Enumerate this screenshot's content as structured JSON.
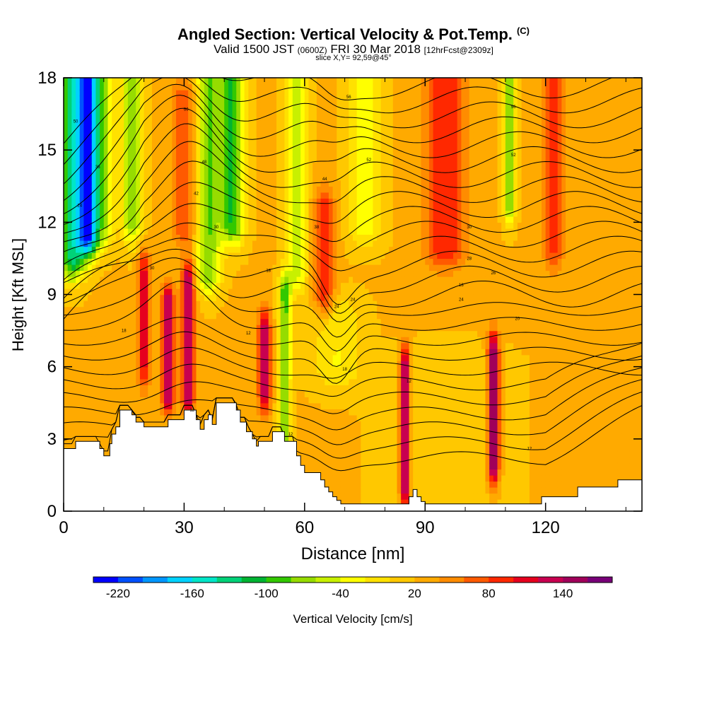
{
  "header": {
    "title_main": "Angled Section: Vertical Velocity & Pot.Temp.",
    "title_unit": "(C)",
    "valid_prefix": "Valid 1500 JST",
    "valid_utc": "(0600Z)",
    "valid_date": "FRI 30 Mar 2018",
    "valid_fcst": "[12hrFcst@2309z]",
    "slice": "slice X,Y= 92,59@45°"
  },
  "chart_data": {
    "type": "heatmap",
    "xlabel": "Distance [nm]",
    "ylabel": "Height [Kft MSL]",
    "xlim": [
      0,
      144
    ],
    "ylim": [
      0,
      18
    ],
    "x_ticks": [
      0,
      30,
      60,
      90,
      120
    ],
    "y_ticks": [
      0,
      3,
      6,
      9,
      12,
      15,
      18
    ],
    "colorbar": {
      "label": "Vertical Velocity [cm/s]",
      "tick_labels": [
        -220,
        -160,
        -100,
        -40,
        20,
        80,
        140
      ],
      "min": -240,
      "max": 180,
      "colors": [
        "#0000ff",
        "#0050ff",
        "#0096ff",
        "#00d2ff",
        "#00e6c8",
        "#00d278",
        "#00b432",
        "#32c800",
        "#96dc00",
        "#c8f000",
        "#ffff00",
        "#ffe100",
        "#ffc800",
        "#ffaa00",
        "#ff8c00",
        "#ff5a00",
        "#ff2800",
        "#e6001e",
        "#c80050",
        "#a0005a",
        "#780078"
      ]
    },
    "w_field": {
      "base": 22,
      "bands": [
        {
          "x": 2,
          "width": 3,
          "w": -120,
          "ymin": 10.5,
          "ymax": 18
        },
        {
          "x": 6,
          "width": 2.5,
          "w": -210,
          "ymin": 11.5,
          "ymax": 18
        },
        {
          "x": 10,
          "width": 2.5,
          "w": -60,
          "ymin": 12,
          "ymax": 18
        },
        {
          "x": 17,
          "width": 2.5,
          "w": -70,
          "ymin": 12,
          "ymax": 18
        },
        {
          "x": 20,
          "width": 1.5,
          "w": 110,
          "ymin": 6,
          "ymax": 10
        },
        {
          "x": 26,
          "width": 1.6,
          "w": 150,
          "ymin": 5,
          "ymax": 8.5
        },
        {
          "x": 31,
          "width": 1.6,
          "w": 150,
          "ymin": 5,
          "ymax": 9.5
        },
        {
          "x": 30,
          "width": 3,
          "w": 80,
          "ymin": 12,
          "ymax": 17
        },
        {
          "x": 36,
          "width": 3,
          "w": -80,
          "ymin": 10,
          "ymax": 18
        },
        {
          "x": 42,
          "width": 3,
          "w": -100,
          "ymin": 12,
          "ymax": 18
        },
        {
          "x": 50,
          "width": 1.5,
          "w": 140,
          "ymin": 5,
          "ymax": 7.5
        },
        {
          "x": 55,
          "width": 1.5,
          "w": -90,
          "ymin": 3,
          "ymax": 9
        },
        {
          "x": 58,
          "width": 2.5,
          "w": -50,
          "ymin": 10,
          "ymax": 18
        },
        {
          "x": 65,
          "width": 2.5,
          "w": 100,
          "ymin": 9,
          "ymax": 12.5
        },
        {
          "x": 75,
          "width": 4,
          "w": -40,
          "ymin": 12,
          "ymax": 18
        },
        {
          "x": 85,
          "width": 1.2,
          "w": 160,
          "ymin": 1,
          "ymax": 6
        },
        {
          "x": 95,
          "width": 5,
          "w": 100,
          "ymin": 11,
          "ymax": 18
        },
        {
          "x": 107,
          "width": 1.4,
          "w": 170,
          "ymin": 2,
          "ymax": 6.5
        },
        {
          "x": 111,
          "width": 1.5,
          "w": -90,
          "ymin": 13,
          "ymax": 18
        },
        {
          "x": 122,
          "width": 2.5,
          "w": 90,
          "ymin": 11,
          "ymax": 18
        },
        {
          "x": 68,
          "width": 6,
          "w": -20,
          "ymin": 6,
          "ymax": 8
        },
        {
          "x": 95,
          "width": 14,
          "w": 2,
          "ymin": 0,
          "ymax": 6
        }
      ]
    },
    "terrain": {
      "x": [
        0,
        2,
        3,
        8,
        9,
        9.5,
        10,
        10.5,
        11.5,
        12,
        13,
        14,
        15,
        17,
        18,
        19,
        20,
        25,
        26,
        30,
        32,
        33,
        34,
        35,
        36,
        37,
        38,
        42,
        43,
        44,
        45,
        45.5,
        46,
        47,
        48,
        48.5,
        51,
        52,
        54,
        55,
        57,
        58,
        59,
        60,
        63,
        64,
        65,
        66,
        67,
        68,
        69,
        70,
        85,
        86,
        87,
        88,
        89,
        90,
        100,
        115,
        119,
        120,
        128,
        129,
        138,
        144
      ],
      "y": [
        2.6,
        2.6,
        2.9,
        2.9,
        2.6,
        2.6,
        2.3,
        2.3,
        2.8,
        3.2,
        3.5,
        4.2,
        4.2,
        4.0,
        3.7,
        3.7,
        3.5,
        3.5,
        3.8,
        4.2,
        4.2,
        3.8,
        3.4,
        3.8,
        4.0,
        3.6,
        4.5,
        4.5,
        4.2,
        3.7,
        3.7,
        3.3,
        3.3,
        3.0,
        2.7,
        2.9,
        2.9,
        3.3,
        3.3,
        2.9,
        2.9,
        2.3,
        1.9,
        1.6,
        1.6,
        1.3,
        1.0,
        0.8,
        0.6,
        0.45,
        0.3,
        0.3,
        0.3,
        0.6,
        0.9,
        0.6,
        0.4,
        0.3,
        0.3,
        0.3,
        0.6,
        0.6,
        1.0,
        1.0,
        1.3,
        1.3
      ]
    },
    "contour_labels": [
      {
        "x": 3,
        "y": 16.2,
        "text": "50"
      },
      {
        "x": 4,
        "y": 12.7,
        "text": "24"
      },
      {
        "x": 8.5,
        "y": 14.3,
        "text": "36"
      },
      {
        "x": 30.5,
        "y": 16.7,
        "text": "66"
      },
      {
        "x": 35,
        "y": 14.5,
        "text": "48"
      },
      {
        "x": 33,
        "y": 13.2,
        "text": "42"
      },
      {
        "x": 38,
        "y": 11.8,
        "text": "30"
      },
      {
        "x": 22,
        "y": 10.1,
        "text": "30"
      },
      {
        "x": 51,
        "y": 10.0,
        "text": "18"
      },
      {
        "x": 15,
        "y": 7.5,
        "text": "18"
      },
      {
        "x": 46,
        "y": 7.4,
        "text": "12"
      },
      {
        "x": 71,
        "y": 17.2,
        "text": "56"
      },
      {
        "x": 76,
        "y": 14.6,
        "text": "52"
      },
      {
        "x": 65,
        "y": 13.8,
        "text": "44"
      },
      {
        "x": 63,
        "y": 11.8,
        "text": "38"
      },
      {
        "x": 68,
        "y": 8.5,
        "text": "24"
      },
      {
        "x": 72,
        "y": 8.8,
        "text": "24"
      },
      {
        "x": 70,
        "y": 5.9,
        "text": "18"
      },
      {
        "x": 56.5,
        "y": 3.2,
        "text": "12"
      },
      {
        "x": 86,
        "y": 5.4,
        "text": "12"
      },
      {
        "x": 112,
        "y": 14.8,
        "text": "52"
      },
      {
        "x": 112,
        "y": 16.8,
        "text": "56"
      },
      {
        "x": 101,
        "y": 11.8,
        "text": "30"
      },
      {
        "x": 101,
        "y": 10.5,
        "text": "28"
      },
      {
        "x": 107,
        "y": 9.9,
        "text": "26"
      },
      {
        "x": 99,
        "y": 9.4,
        "text": "18"
      },
      {
        "x": 99,
        "y": 8.8,
        "text": "24"
      },
      {
        "x": 113,
        "y": 8.0,
        "text": "20"
      },
      {
        "x": 116,
        "y": 2.6,
        "text": "12"
      },
      {
        "x": 32,
        "y": 4.2,
        "text": "12"
      }
    ]
  }
}
